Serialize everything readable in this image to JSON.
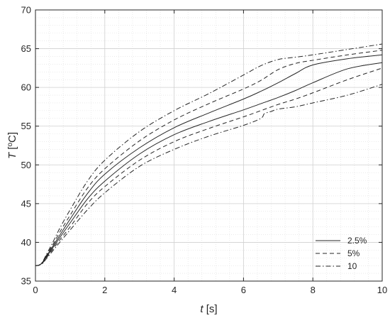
{
  "chart_data": {
    "type": "line",
    "xlabel_var": "t",
    "xlabel_unit": " [s]",
    "ylabel_var": "T",
    "ylabel_unit_pre": " [",
    "ylabel_unit_sup": "o",
    "ylabel_unit_post": "C]",
    "xlim": [
      0,
      10
    ],
    "ylim": [
      35,
      70
    ],
    "xticks": [
      0,
      2,
      4,
      6,
      8,
      10
    ],
    "yticks": [
      35,
      40,
      45,
      50,
      55,
      60,
      65,
      70
    ],
    "x_minor_step": 0.4,
    "y_minor_step": 1,
    "grid": true,
    "minor_grid": true,
    "legend_position": "bottom-right",
    "legend": [
      {
        "label": "2.5%",
        "style": "solid"
      },
      {
        "label": "5%",
        "style": "dashed"
      },
      {
        "label": "10",
        "style": "dashdot"
      }
    ],
    "series": [
      {
        "group": "2.5%",
        "style": "solid",
        "x": [
          0,
          0.1,
          0.2,
          0.3,
          0.5,
          0.7,
          1,
          1.5,
          2,
          3,
          4,
          5,
          6,
          6.5,
          7,
          7.5,
          8,
          9,
          10
        ],
        "y": [
          37,
          37.05,
          37.4,
          38.1,
          39.5,
          40.9,
          43,
          46.3,
          48.8,
          52.2,
          54.8,
          56.7,
          58.5,
          59.5,
          60.6,
          61.8,
          62.9,
          63.7,
          64.2
        ]
      },
      {
        "group": "2.5%",
        "style": "solid",
        "x": [
          0,
          0.1,
          0.2,
          0.3,
          0.5,
          0.7,
          1,
          1.5,
          2,
          3,
          4,
          5,
          6,
          6.5,
          7,
          7.5,
          8,
          9,
          10
        ],
        "y": [
          37,
          37.05,
          37.35,
          38,
          39.3,
          40.6,
          42.5,
          45.6,
          47.9,
          51.4,
          53.9,
          55.6,
          57.1,
          57.9,
          58.7,
          59.6,
          60.6,
          62.4,
          63.2
        ]
      },
      {
        "group": "5%",
        "style": "dashed",
        "x": [
          0,
          0.1,
          0.2,
          0.3,
          0.5,
          0.7,
          1,
          1.5,
          2,
          3,
          4,
          5,
          6,
          6.5,
          7,
          7.5,
          8,
          9,
          10
        ],
        "y": [
          37,
          37.05,
          37.4,
          38.2,
          39.7,
          41.3,
          43.5,
          47,
          49.5,
          53.1,
          55.8,
          57.9,
          59.8,
          60.9,
          62.3,
          63.1,
          63.5,
          64.2,
          64.8
        ]
      },
      {
        "group": "5%",
        "style": "dashed",
        "x": [
          0,
          0.1,
          0.2,
          0.3,
          0.5,
          0.7,
          1,
          1.5,
          2,
          3,
          4,
          5,
          6,
          6.5,
          7,
          7.5,
          8,
          9,
          10
        ],
        "y": [
          37,
          37.05,
          37.3,
          37.9,
          39.1,
          40.3,
          42,
          45,
          47.2,
          50.6,
          53,
          54.7,
          56.2,
          57,
          57.8,
          58.5,
          59.3,
          61,
          62.5
        ]
      },
      {
        "group": "10",
        "style": "dashdot",
        "x": [
          0,
          0.1,
          0.2,
          0.3,
          0.5,
          0.7,
          1,
          1.5,
          2,
          3,
          4,
          5,
          6,
          6.5,
          7,
          7.5,
          8,
          9,
          10
        ],
        "y": [
          37,
          37.05,
          37.45,
          38.3,
          40,
          41.8,
          44.2,
          47.9,
          50.6,
          54.3,
          57,
          59.2,
          61.6,
          62.8,
          63.6,
          63.9,
          64.2,
          64.9,
          65.6
        ]
      },
      {
        "group": "10",
        "style": "dashdot",
        "x": [
          0,
          0.1,
          0.2,
          0.3,
          0.5,
          0.7,
          1,
          1.5,
          2,
          3,
          4,
          5,
          6,
          6.5,
          6.6,
          6.8,
          7,
          7.5,
          8,
          9,
          10
        ],
        "y": [
          37,
          37.05,
          37.25,
          37.8,
          38.9,
          40,
          41.6,
          44.2,
          46.4,
          49.8,
          52,
          53.7,
          55.1,
          56,
          56.6,
          56.9,
          57.2,
          57.5,
          58,
          59,
          60.4
        ]
      }
    ]
  }
}
